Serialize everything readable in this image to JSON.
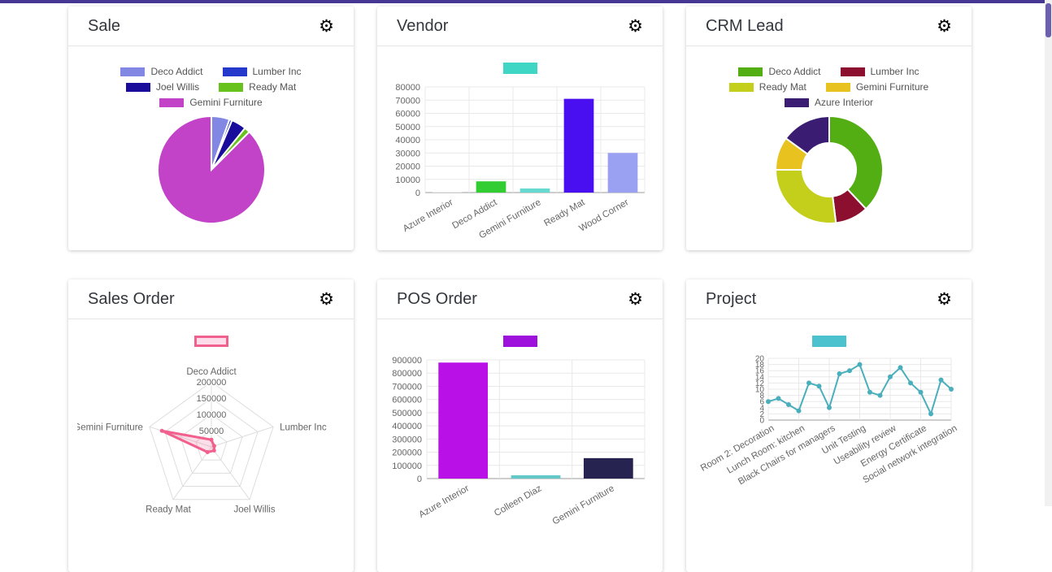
{
  "page": {
    "background": "#ffffff",
    "topbar_color": "#463794",
    "scrollbar_thumb_color": "#6c5fae"
  },
  "gear_icon": "⚙",
  "cards": [
    {
      "title": "Sale"
    },
    {
      "title": "Vendor"
    },
    {
      "title": "CRM Lead"
    },
    {
      "title": "Sales Order"
    },
    {
      "title": "POS Order"
    },
    {
      "title": "Project"
    }
  ],
  "chart_data": [
    {
      "card": "Sale",
      "type": "pie",
      "labels": [
        "Deco Addict",
        "Lumber Inc",
        "Joel Willis",
        "Ready Mat",
        "Gemini Furniture"
      ],
      "values": [
        5.5,
        0.8,
        4.5,
        1.7,
        87.5
      ],
      "colors": [
        "#8187e2",
        "#2438cc",
        "#1a0d9b",
        "#68c21d",
        "#c243c8"
      ],
      "legend_position": "top"
    },
    {
      "card": "Vendor",
      "type": "bar",
      "categories": [
        "Azure Interior",
        "Deco Addict",
        "Gemini Furniture",
        "Ready Mat",
        "Wood Corner"
      ],
      "values": [
        300,
        8500,
        3100,
        71000,
        30000
      ],
      "bar_colors": [
        "#d8d8d8",
        "#32cd32",
        "#66d9d0",
        "#4a0ff0",
        "#9ba1f2"
      ],
      "legend_swatch_color": "#3fd6c6",
      "ylim": [
        0,
        80000
      ],
      "y_ticks": [
        0,
        10000,
        20000,
        30000,
        40000,
        50000,
        60000,
        70000,
        80000
      ],
      "grid": true
    },
    {
      "card": "CRM Lead",
      "type": "doughnut",
      "labels": [
        "Deco Addict",
        "Lumber Inc",
        "Ready Mat",
        "Gemini Furniture",
        "Azure Interior"
      ],
      "values": [
        38,
        10,
        27,
        10,
        15
      ],
      "colors": [
        "#53ae14",
        "#8c0f2f",
        "#c3cf1a",
        "#e8c31f",
        "#3a1d72"
      ],
      "legend_position": "top"
    },
    {
      "card": "Sales Order",
      "type": "radar",
      "axes": [
        "Deco Addict",
        "Lumber Inc",
        "Joel Willis",
        "Ready Mat",
        "Gemini Furniture"
      ],
      "values": [
        22000,
        9000,
        14000,
        20000,
        160000
      ],
      "ticks": [
        50000,
        100000,
        150000,
        200000
      ],
      "max": 200000,
      "line_color": "#f2608e",
      "fill_color": "rgba(242,96,142,0.2)",
      "legend_swatch_border": "#f2608e",
      "legend_swatch_fill": "#fbdce8"
    },
    {
      "card": "POS Order",
      "type": "bar",
      "categories": [
        "Azure Interior",
        "Colleen Diaz",
        "Gemini Furniture"
      ],
      "values": [
        880000,
        25000,
        155000
      ],
      "bar_colors": [
        "#ba10e8",
        "#62c8c8",
        "#262350"
      ],
      "legend_swatch_color": "#9e10dc",
      "ylim": [
        0,
        900000
      ],
      "y_ticks": [
        0,
        100000,
        200000,
        300000,
        400000,
        500000,
        600000,
        700000,
        800000,
        900000
      ],
      "grid": true
    },
    {
      "card": "Project",
      "type": "line",
      "x_labels": [
        "Room 2: Decoration",
        "Lunch Room: kitchen",
        "Black Chairs for managers",
        "Unit Testing",
        "Useability review",
        "Energy Certificate",
        "Social network integration"
      ],
      "values": [
        6,
        7,
        5,
        3,
        12,
        11,
        4,
        15,
        16,
        18,
        9,
        8,
        14,
        17,
        12,
        9,
        2,
        13,
        10
      ],
      "label_point_indices": [
        0,
        3,
        6,
        9,
        12,
        15,
        18
      ],
      "ylim": [
        0,
        20
      ],
      "y_ticks": [
        0,
        2,
        4,
        6,
        8,
        10,
        12,
        14,
        16,
        18,
        20
      ],
      "line_color": "#4aafbc",
      "legend_swatch_color": "#4cc2ce",
      "grid": true
    }
  ]
}
